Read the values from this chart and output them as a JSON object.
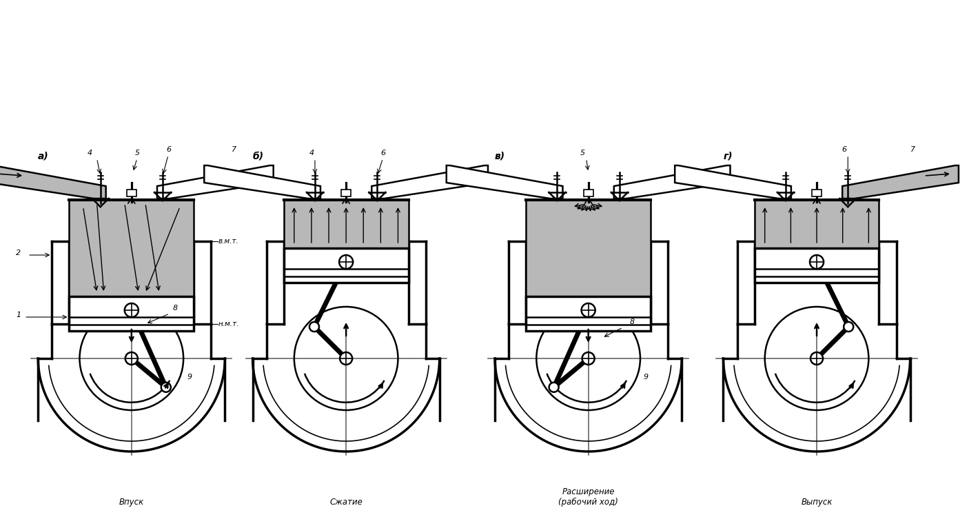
{
  "bg_color": "#ffffff",
  "line_color": "#000000",
  "shade_color": "#b8b8b8",
  "figsize": [
    14.06,
    7.5
  ],
  "dpi": 100,
  "stages": [
    "а)",
    "б)",
    "в)",
    "г)"
  ],
  "stage_labels": [
    "Впуск",
    "Сжатие",
    "Расширение\n(рабочий ход)",
    "Выпуск"
  ],
  "vmt_label": "в.м.т.",
  "nmt_label": "н.м.т."
}
